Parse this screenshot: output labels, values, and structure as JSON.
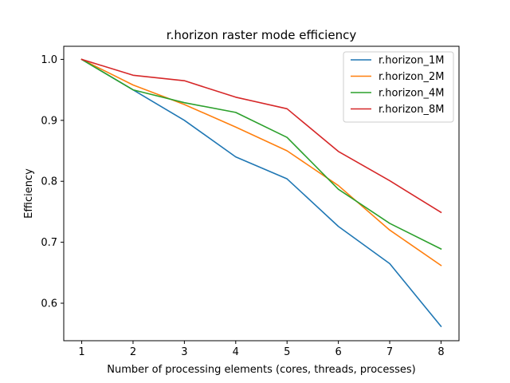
{
  "chart_data": {
    "type": "line",
    "title": "r.horizon raster mode efficiency",
    "xlabel": "Number of processing elements (cores, threads, processes)",
    "ylabel": "Efficiency",
    "x": [
      1,
      2,
      3,
      4,
      5,
      6,
      7,
      8
    ],
    "xlim": [
      0.65,
      8.35
    ],
    "ylim": [
      0.5385,
      1.0215
    ],
    "xticks": [
      "1",
      "2",
      "3",
      "4",
      "5",
      "6",
      "7",
      "8"
    ],
    "yticks": [
      "0.6",
      "0.7",
      "0.8",
      "0.9",
      "1.0"
    ],
    "grid": false,
    "legend_position": "top-right",
    "series": [
      {
        "name": "r.horizon_1M",
        "color": "#1f77b4",
        "values": [
          1.0,
          0.95,
          0.9,
          0.84,
          0.804,
          0.726,
          0.665,
          0.562
        ]
      },
      {
        "name": "r.horizon_2M",
        "color": "#ff7f0e",
        "values": [
          1.0,
          0.958,
          0.926,
          0.889,
          0.85,
          0.793,
          0.72,
          0.662
        ]
      },
      {
        "name": "r.horizon_4M",
        "color": "#2ca02c",
        "values": [
          1.0,
          0.95,
          0.929,
          0.913,
          0.872,
          0.787,
          0.731,
          0.689
        ]
      },
      {
        "name": "r.horizon_8M",
        "color": "#d62728",
        "values": [
          1.0,
          0.974,
          0.965,
          0.938,
          0.919,
          0.849,
          0.801,
          0.749
        ]
      }
    ]
  }
}
